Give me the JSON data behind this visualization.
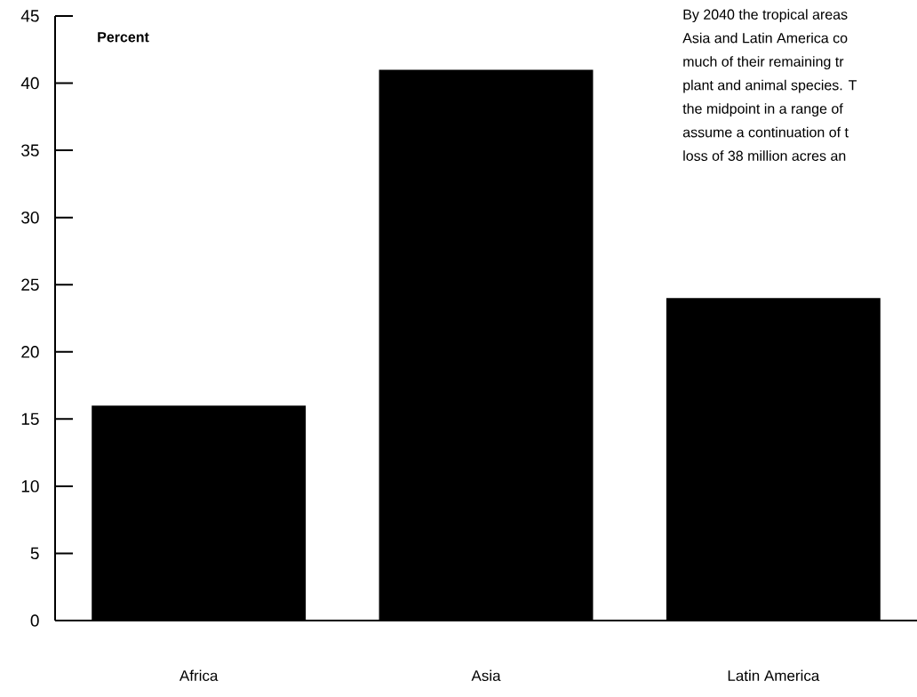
{
  "chart_data": {
    "type": "bar",
    "ylabel": "Percent",
    "categories": [
      "Africa",
      "Asia",
      "Latin America"
    ],
    "values": [
      16,
      41,
      24
    ],
    "color": "#000000",
    "ylim": [
      0,
      45
    ],
    "yticks": [
      0,
      5,
      10,
      15,
      20,
      25,
      30,
      35,
      40,
      45
    ],
    "annotations": [
      "By 2040 the tropical areas",
      "Asia and Latin America co",
      "much of their remaining tr",
      "plant and animal species. T",
      "the midpoint in a range of",
      "assume a continuation of t",
      "loss of 38 million acres an"
    ]
  }
}
